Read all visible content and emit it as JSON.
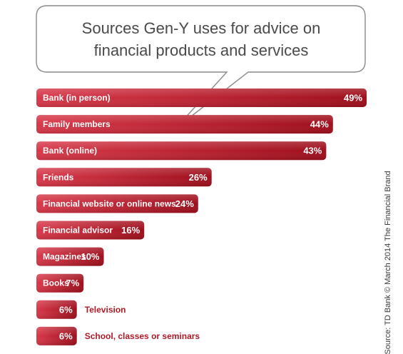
{
  "chart_data": {
    "type": "bar",
    "orientation": "horizontal",
    "title_lines": [
      "Sources Gen-Y uses for advice on",
      "financial products and services"
    ],
    "categories": [
      "Bank (in person)",
      "Family members",
      "Bank (online)",
      "Friends",
      "Financial website or online news",
      "Financial advisor",
      "Magazines",
      "Books",
      "Television",
      "School, classes or seminars"
    ],
    "values": [
      49,
      44,
      43,
      26,
      24,
      16,
      10,
      7,
      6,
      6
    ],
    "value_labels": [
      "49%",
      "44%",
      "43%",
      "26%",
      "24%",
      "16%",
      "10%",
      "7%",
      "6%",
      "6%"
    ],
    "xlim": [
      0,
      50
    ],
    "grid": false,
    "legend": "none",
    "bar_color": "#b01a26",
    "bar_color_light": "#d8394a",
    "source": "Source: TD Bank © March 2014 The Financial Brand"
  }
}
